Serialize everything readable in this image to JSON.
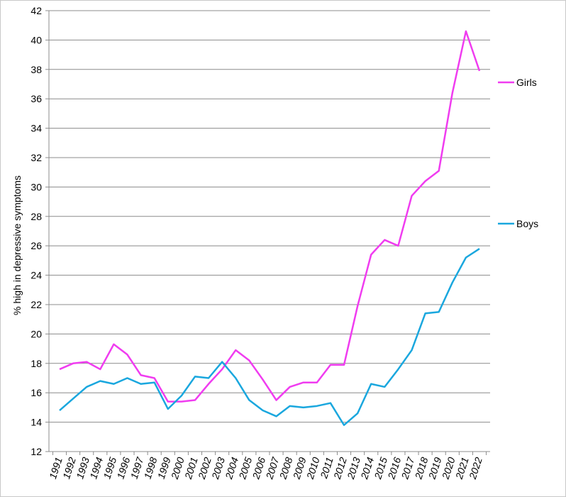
{
  "chart_data": {
    "type": "line",
    "title": "",
    "xlabel": "",
    "ylabel": "% high in depressive symptoms",
    "x": [
      "1991",
      "1992",
      "1993",
      "1994",
      "1995",
      "1996",
      "1997",
      "1998",
      "1999",
      "2000",
      "2001",
      "2002",
      "2003",
      "2004",
      "2005",
      "2006",
      "2007",
      "2008",
      "2009",
      "2010",
      "2011",
      "2012",
      "2013",
      "2014",
      "2015",
      "2016",
      "2017",
      "2018",
      "2019",
      "2020",
      "2021",
      "2022"
    ],
    "ylim": [
      12,
      42
    ],
    "yticks": [
      12,
      14,
      16,
      18,
      20,
      22,
      24,
      26,
      28,
      30,
      32,
      34,
      36,
      38,
      40,
      42
    ],
    "grid": true,
    "legend_placement": "right",
    "series": [
      {
        "name": "Girls",
        "color": "#f03cf0",
        "values": [
          17.6,
          18.0,
          18.1,
          17.6,
          19.3,
          18.6,
          17.2,
          17.0,
          15.4,
          15.4,
          15.5,
          16.6,
          17.6,
          18.9,
          18.2,
          16.9,
          15.5,
          16.4,
          16.7,
          16.7,
          17.9,
          17.9,
          21.9,
          25.4,
          26.4,
          26.0,
          29.4,
          30.4,
          31.1,
          36.4,
          40.6,
          37.9
        ]
      },
      {
        "name": "Boys",
        "color": "#1aa7de",
        "values": [
          14.8,
          15.6,
          16.4,
          16.8,
          16.6,
          17.0,
          16.6,
          16.7,
          14.9,
          15.8,
          17.1,
          17.0,
          18.1,
          17.0,
          15.5,
          14.8,
          14.4,
          15.1,
          15.0,
          15.1,
          15.3,
          13.8,
          14.6,
          16.6,
          16.4,
          17.6,
          18.9,
          21.4,
          21.5,
          23.5,
          25.2,
          25.8
        ]
      }
    ]
  }
}
